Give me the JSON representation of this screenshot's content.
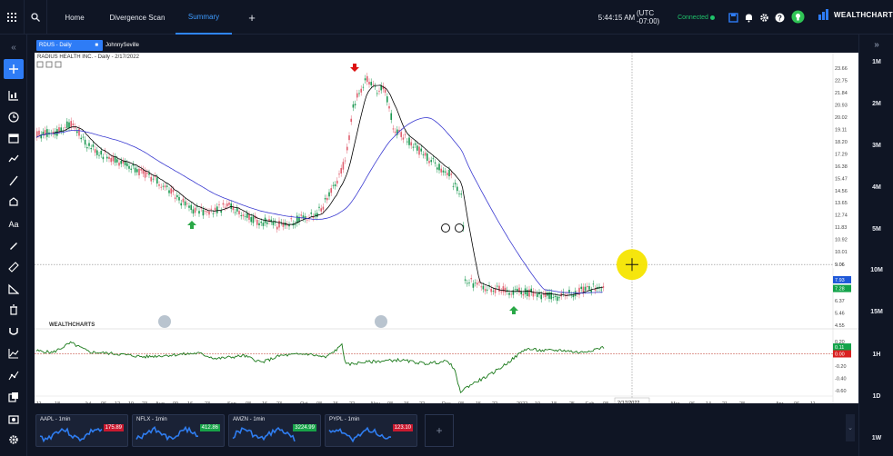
{
  "topbar": {
    "home": "Home",
    "divergence": "Divergence Scan",
    "summary": "Summary",
    "plus": "+",
    "time": "5:44:15 AM",
    "tz": "(UTC -07:00)",
    "connected": "Connected",
    "brand": "WEALTHCHARTS"
  },
  "symbol_tab": {
    "label": "RDUS - Daily"
  },
  "user_tab": {
    "label": "JohnnySeville"
  },
  "chart": {
    "legend": "RADIUS HEALTH INC. - Daily - 2/17/2022",
    "watermark": "WEALTHCHARTS",
    "price_ticks": [
      "23.66",
      "22.75",
      "21.84",
      "20.93",
      "20.02",
      "19.11",
      "18.20",
      "17.29",
      "16.38",
      "15.47",
      "14.56",
      "13.65",
      "12.74",
      "11.83",
      "10.92",
      "10.01",
      "9.06",
      "7.28",
      "6.37",
      "5.46",
      "4.55"
    ],
    "crosshair_price": "9.06",
    "price_labels": [
      {
        "text": "7.93",
        "color": "#1e58d8"
      },
      {
        "text": "7.28",
        "color": "#13a34a"
      }
    ],
    "ind_ticks": [
      "0.20",
      "0.11",
      "0.00",
      "-0.20",
      "-0.40",
      "-0.60"
    ],
    "ind_labels": [
      {
        "text": "0.11",
        "color": "#13a34a"
      },
      {
        "text": "0.00",
        "color": "#d92020"
      }
    ],
    "x_ticks": [
      "11",
      "18",
      "Jul",
      "06",
      "12",
      "19",
      "23",
      "Aug",
      "09",
      "16",
      "23",
      "Sep",
      "08",
      "16",
      "23",
      "Oct",
      "08",
      "15",
      "22",
      "Nov",
      "08",
      "15",
      "22",
      "Dec",
      "08",
      "15",
      "22",
      "2022",
      "10",
      "18",
      "25",
      "Feb",
      "08",
      "Mar",
      "06",
      "14",
      "21",
      "28",
      "Apr",
      "06",
      "11"
    ],
    "crosshair_date": "2/17/2022"
  },
  "right_panel": [
    "1M",
    "2M",
    "3M",
    "4M",
    "5M",
    "10M",
    "15M",
    "1H",
    "1D",
    "1W"
  ],
  "minis": [
    {
      "sym": "AAPL - 1min",
      "price": "175.89",
      "color": "#c9192f"
    },
    {
      "sym": "NFLX - 1min",
      "price": "412.86",
      "color": "#17a248"
    },
    {
      "sym": "AMZN - 1min",
      "price": "3224.99",
      "color": "#17a248"
    },
    {
      "sym": "PYPL - 1min",
      "price": "123.10",
      "color": "#c9192f"
    }
  ],
  "colors": {
    "accent": "#2e7cf6",
    "bull": "#1a9850",
    "bear": "#e06070",
    "ma_fast": "#000000",
    "ma_slow": "#3b3bd1",
    "highlight": "#f5e500"
  }
}
